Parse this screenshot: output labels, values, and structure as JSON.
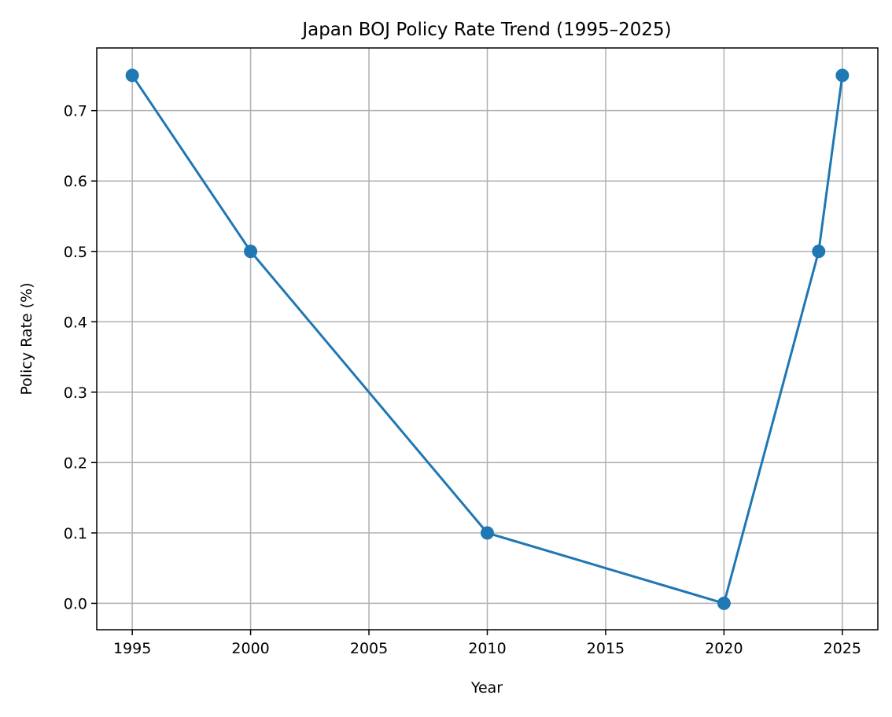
{
  "chart_data": {
    "type": "line",
    "title": "Japan BOJ Policy Rate Trend (1995–2025)",
    "xlabel": "Year",
    "ylabel": "Policy Rate (%)",
    "x": [
      1995,
      2000,
      2010,
      2020,
      2024,
      2025
    ],
    "series": [
      {
        "values": [
          0.75,
          0.5,
          0.1,
          0.0,
          0.5,
          0.75
        ],
        "color": "#1f77b4",
        "marker": "circle"
      }
    ],
    "xlim": [
      1993.5,
      2026.5
    ],
    "ylim": [
      -0.0375,
      0.789
    ],
    "xticks": [
      1995,
      2000,
      2005,
      2010,
      2015,
      2020,
      2025
    ],
    "xtick_labels": [
      "1995",
      "2000",
      "2005",
      "2010",
      "2015",
      "2020",
      "2025"
    ],
    "yticks": [
      0.0,
      0.1,
      0.2,
      0.3,
      0.4,
      0.5,
      0.6,
      0.7
    ],
    "ytick_labels": [
      "0.0",
      "0.1",
      "0.2",
      "0.3",
      "0.4",
      "0.5",
      "0.6",
      "0.7"
    ],
    "grid": true,
    "grid_color": "#b0b0b0"
  }
}
